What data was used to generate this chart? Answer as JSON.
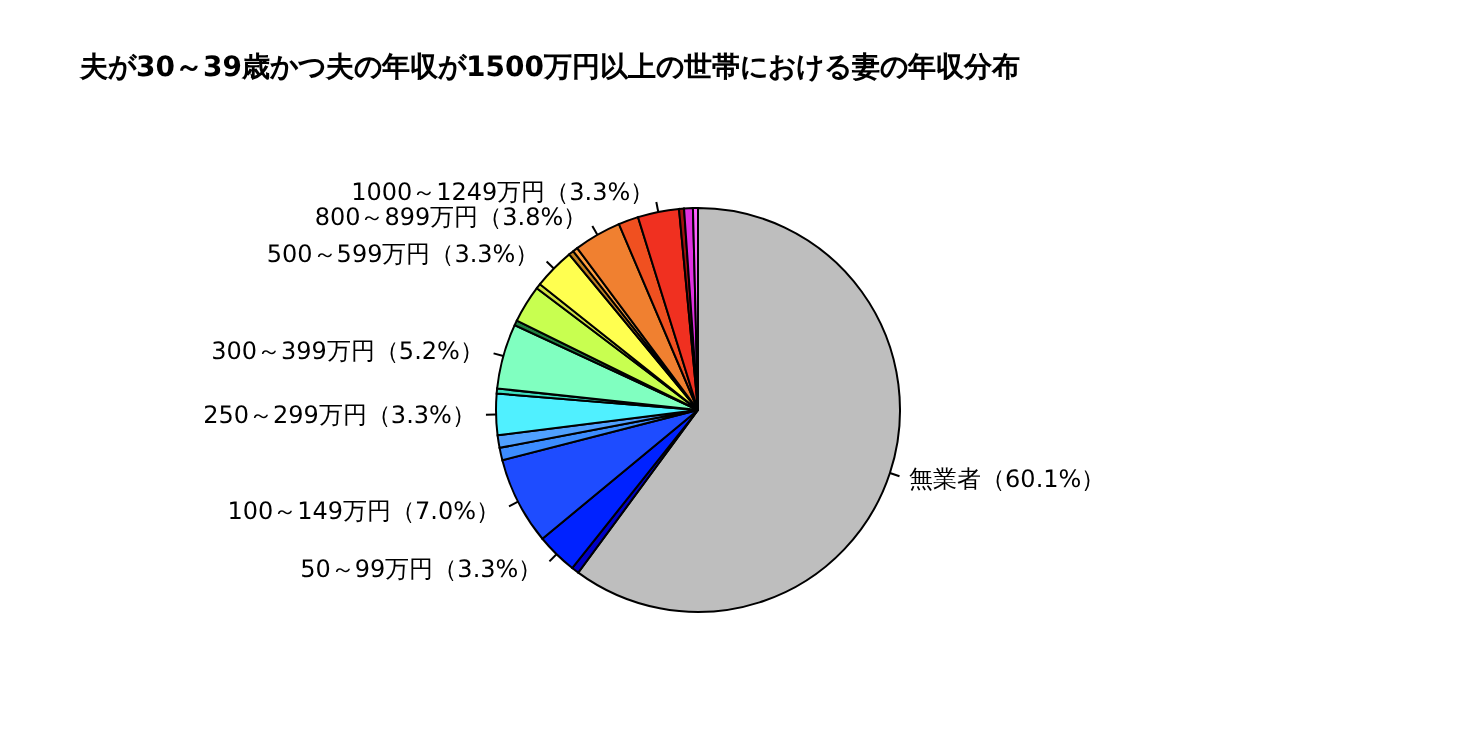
{
  "chart_data": {
    "type": "pie",
    "title": "夫が30～39歳かつ夫の年収が1500万円以上の世帯における妻の年収分布",
    "categories": [
      "無業者",
      null,
      "50～99万円",
      "100～149万円",
      null,
      null,
      "250～299万円",
      null,
      "300～399万円",
      null,
      null,
      null,
      "500～599万円",
      null,
      null,
      "800～899万円",
      null,
      "1000～1249万円",
      null,
      null,
      null
    ],
    "values": [
      60.1,
      0.6,
      3.3,
      7.0,
      1.0,
      1.0,
      3.3,
      0.4,
      5.2,
      0.4,
      3.0,
      0.4,
      3.3,
      0.4,
      0.4,
      3.8,
      1.6,
      3.3,
      0.4,
      0.7,
      0.4
    ],
    "value_labels": [
      "（60.1%）",
      null,
      "（3.3%）",
      "（7.0%）",
      null,
      null,
      "（3.3%）",
      null,
      "（5.2%）",
      null,
      null,
      null,
      "（3.3%）",
      null,
      null,
      "（3.8%）",
      null,
      "（3.3%）",
      null,
      null,
      null
    ],
    "colors": [
      "#bebebe",
      "#0000c8",
      "#0022ff",
      "#1e4cff",
      "#3c8cff",
      "#50a0ff",
      "#50f0ff",
      "#3ce0c0",
      "#80ffc0",
      "#208040",
      "#c8ff50",
      "#d0e040",
      "#ffff50",
      "#c08020",
      "#ffa040",
      "#f08030",
      "#f05020",
      "#f03020",
      "#a01010",
      "#e030e0",
      "#ff60ff"
    ]
  }
}
